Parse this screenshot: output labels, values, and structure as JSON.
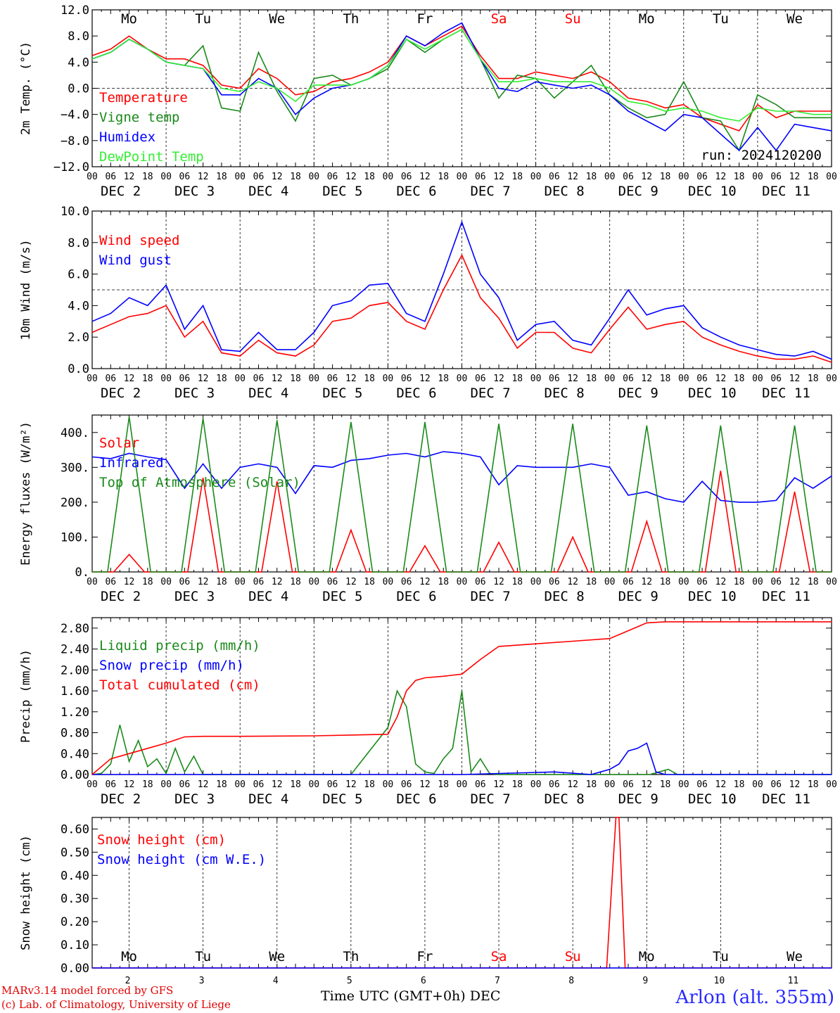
{
  "run_label": "run: 2024120200",
  "x_title": "Time UTC (GMT+0h) DEC",
  "footer": {
    "line1": "MARv3.14 model forced by GFS",
    "line2": "(c) Lab. of Climatology, University of Liege",
    "station": "Arlon (alt. 355m)"
  },
  "colors": {
    "red": "#ff0000",
    "green": "#1a8a1a",
    "blue": "#0000ff",
    "lightgreen": "#33ee33",
    "weekend": "#ff0000"
  },
  "days": {
    "weekday_labels": [
      "Mo",
      "Tu",
      "We",
      "Th",
      "Fr",
      "Sa",
      "Su",
      "Mo",
      "Tu",
      "We"
    ],
    "weekend_flags": [
      false,
      false,
      false,
      false,
      false,
      true,
      true,
      false,
      false,
      false
    ],
    "date_labels": [
      "DEC  2",
      "DEC  3",
      "DEC  4",
      "DEC  5",
      "DEC  6",
      "DEC  7",
      "DEC  8",
      "DEC  9",
      "DEC 10",
      "DEC 11"
    ],
    "day_numbers": [
      "2",
      "3",
      "4",
      "5",
      "6",
      "7",
      "8",
      "9",
      "10",
      "11"
    ],
    "hour_labels": [
      "00",
      "06",
      "12",
      "18"
    ],
    "final_hour_label": "00"
  },
  "chart_data": [
    {
      "type": "line",
      "id": "temp",
      "ylabel": "2m Temp. (°C)",
      "ylim": [
        -12,
        12
      ],
      "yticks": [
        "−12.0",
        "−8.0",
        "−4.0",
        "0.0",
        "4.0",
        "8.0",
        "12.0"
      ],
      "ytick_values": [
        -12,
        -8,
        -4,
        0,
        4,
        8,
        12
      ],
      "hline": 0,
      "x_unit": "hours since DEC 2 00 UTC",
      "series": [
        {
          "name": "Temperature",
          "color": "#ff0000",
          "x": [
            0,
            6,
            12,
            18,
            24,
            30,
            36,
            42,
            48,
            54,
            60,
            66,
            72,
            78,
            84,
            90,
            96,
            102,
            108,
            114,
            120,
            126,
            132,
            138,
            144,
            150,
            156,
            162,
            168,
            174,
            180,
            186,
            192,
            198,
            204,
            210,
            216,
            222,
            228,
            234,
            240
          ],
          "y": [
            5,
            6,
            8,
            6,
            4.5,
            4.5,
            3.5,
            0.5,
            0,
            3,
            1.5,
            -1,
            -0.5,
            1,
            1.5,
            2.5,
            4,
            8,
            6.5,
            8,
            9.5,
            5,
            1.5,
            1.5,
            2.5,
            2,
            1.5,
            2.5,
            1,
            -1.5,
            -2,
            -3,
            -2.5,
            -4.5,
            -5.5,
            -6.5,
            -2.5,
            -4.5,
            -3.5,
            -3.5,
            -3.5
          ]
        },
        {
          "name": "Vigne temp",
          "color": "#1a8a1a",
          "x": [
            0,
            6,
            12,
            18,
            24,
            30,
            36,
            42,
            48,
            54,
            60,
            66,
            72,
            78,
            84,
            90,
            96,
            102,
            108,
            114,
            120,
            126,
            132,
            138,
            144,
            150,
            156,
            162,
            168,
            174,
            180,
            186,
            192,
            198,
            204,
            210,
            216,
            222,
            228,
            234,
            240
          ],
          "y": [
            4.5,
            5.5,
            7.5,
            6,
            4,
            3.5,
            6.5,
            -3,
            -3.5,
            5.5,
            -0.5,
            -5,
            1.5,
            2,
            0.5,
            1.5,
            3,
            7.5,
            5.5,
            7.5,
            9,
            4.5,
            -1.5,
            2,
            1.5,
            -1.5,
            1,
            3.5,
            -1,
            -3,
            -4.5,
            -4,
            1,
            -4.5,
            -5,
            -9.5,
            -1,
            -2.5,
            -4.5,
            -4.5,
            -4.5
          ]
        },
        {
          "name": "Humidex",
          "color": "#0000ff",
          "x": [
            0,
            6,
            12,
            18,
            24,
            30,
            36,
            42,
            48,
            54,
            60,
            66,
            72,
            78,
            84,
            90,
            96,
            102,
            108,
            114,
            120,
            126,
            132,
            138,
            144,
            150,
            156,
            162,
            168,
            174,
            180,
            186,
            192,
            198,
            204,
            210,
            216,
            222,
            228,
            234,
            240
          ],
          "y": [
            4.5,
            5.5,
            7.5,
            6,
            4,
            3.5,
            3,
            -1,
            -1,
            1.5,
            0,
            -4,
            -1.5,
            0,
            0.5,
            1.5,
            3.5,
            8,
            6.5,
            8.5,
            10,
            4.5,
            0,
            -0.5,
            1,
            0.5,
            0,
            0.5,
            -1,
            -3.5,
            -5,
            -6.5,
            -4,
            -4.5,
            -7,
            -9.5,
            -6,
            -9.5,
            -5.5,
            -6,
            -6.5
          ]
        },
        {
          "name": "DewPoint Temp",
          "color": "#33ee33",
          "x": [
            0,
            6,
            12,
            18,
            24,
            30,
            36,
            42,
            48,
            54,
            60,
            66,
            72,
            78,
            84,
            90,
            96,
            102,
            108,
            114,
            120,
            126,
            132,
            138,
            144,
            150,
            156,
            162,
            168,
            174,
            180,
            186,
            192,
            198,
            204,
            210,
            216,
            222,
            228,
            234,
            240
          ],
          "y": [
            4.5,
            5.5,
            7.5,
            6,
            4,
            3.5,
            3,
            0,
            -0.5,
            1,
            0,
            -2,
            0.5,
            0.5,
            0.5,
            1.5,
            3.5,
            7.5,
            6,
            7.5,
            9,
            4.5,
            1,
            1,
            1.5,
            1,
            1,
            1,
            0,
            -2,
            -2.5,
            -3.5,
            -3,
            -3.5,
            -4.5,
            -5,
            -3,
            -3.5,
            -3.5,
            -4,
            -4
          ]
        }
      ],
      "legend": [
        "Temperature",
        "Vigne temp",
        "Humidex",
        "DewPoint Temp"
      ]
    },
    {
      "type": "line",
      "id": "wind",
      "ylabel": "10m Wind (m/s)",
      "ylim": [
        0,
        10
      ],
      "yticks": [
        "0.0",
        "2.0",
        "4.0",
        "6.0",
        "8.0",
        "10.0"
      ],
      "ytick_values": [
        0,
        2,
        4,
        6,
        8,
        10
      ],
      "hline": 5,
      "series": [
        {
          "name": "Wind speed",
          "color": "#ff0000",
          "x": [
            0,
            6,
            12,
            18,
            24,
            30,
            36,
            42,
            48,
            54,
            60,
            66,
            72,
            78,
            84,
            90,
            96,
            102,
            108,
            114,
            120,
            126,
            132,
            138,
            144,
            150,
            156,
            162,
            168,
            174,
            180,
            186,
            192,
            198,
            204,
            210,
            216,
            222,
            228,
            234,
            240
          ],
          "y": [
            2.3,
            2.8,
            3.3,
            3.5,
            4,
            2,
            3,
            1,
            0.8,
            1.8,
            1,
            0.8,
            1.5,
            3,
            3.2,
            4,
            4.2,
            3,
            2.5,
            5,
            7.2,
            4.5,
            3.2,
            1.3,
            2.3,
            2.3,
            1.3,
            1,
            2.5,
            3.9,
            2.5,
            2.8,
            3,
            2,
            1.5,
            1.1,
            0.8,
            0.6,
            0.6,
            0.8,
            0.4
          ]
        },
        {
          "name": "Wind gust",
          "color": "#0000ff",
          "x": [
            0,
            6,
            12,
            18,
            24,
            30,
            36,
            42,
            48,
            54,
            60,
            66,
            72,
            78,
            84,
            90,
            96,
            102,
            108,
            114,
            120,
            126,
            132,
            138,
            144,
            150,
            156,
            162,
            168,
            174,
            180,
            186,
            192,
            198,
            204,
            210,
            216,
            222,
            228,
            234,
            240
          ],
          "y": [
            3,
            3.5,
            4.5,
            4,
            5.3,
            2.5,
            4,
            1.2,
            1.1,
            2.3,
            1.2,
            1.2,
            2.3,
            4,
            4.3,
            5.3,
            5.4,
            3.5,
            3,
            6,
            9.3,
            6,
            4.5,
            1.8,
            2.8,
            3,
            1.8,
            1.5,
            3.2,
            5,
            3.4,
            3.8,
            4,
            2.6,
            2,
            1.5,
            1.2,
            0.9,
            0.8,
            1.1,
            0.6
          ]
        }
      ],
      "legend": [
        "Wind speed",
        "Wind gust"
      ]
    },
    {
      "type": "line",
      "id": "energy",
      "ylabel": "Energy fluxes (W/m²)",
      "ylim": [
        0,
        450
      ],
      "yticks": [
        "0.",
        "100.",
        "200.",
        "300.",
        "400."
      ],
      "ytick_values": [
        0,
        100,
        200,
        300,
        400
      ],
      "series": [
        {
          "name": "Solar",
          "color": "#ff0000",
          "peak_hour_of_day": 12,
          "daily_peaks": [
            50,
            270,
            260,
            120,
            75,
            85,
            100,
            145,
            290,
            230
          ]
        },
        {
          "name": "Infrared",
          "color": "#0000ff",
          "x": [
            0,
            6,
            12,
            18,
            24,
            30,
            36,
            42,
            48,
            54,
            60,
            66,
            72,
            78,
            84,
            90,
            96,
            102,
            108,
            114,
            120,
            126,
            132,
            138,
            144,
            150,
            156,
            162,
            168,
            174,
            180,
            186,
            192,
            198,
            204,
            210,
            216,
            222,
            228,
            234,
            240
          ],
          "y": [
            330,
            325,
            340,
            330,
            322,
            240,
            310,
            240,
            300,
            310,
            300,
            225,
            305,
            300,
            320,
            325,
            335,
            340,
            330,
            345,
            340,
            330,
            250,
            305,
            300,
            300,
            300,
            310,
            300,
            220,
            230,
            210,
            200,
            260,
            205,
            200,
            200,
            205,
            270,
            240,
            275
          ]
        },
        {
          "name": "Top of Atmosphere (Solar)",
          "color": "#1a8a1a",
          "peak_hour_of_day": 12,
          "daily_peaks": [
            445,
            440,
            435,
            430,
            430,
            425,
            425,
            420,
            420,
            420
          ]
        }
      ],
      "legend": [
        "Solar",
        "Infrared",
        "Top of Atmosphere (Solar)"
      ]
    },
    {
      "type": "line",
      "id": "precip",
      "ylabel": "Precip (mm/h)",
      "ylim": [
        0,
        3
      ],
      "yticks": [
        "0.00",
        "0.40",
        "0.80",
        "1.20",
        "1.60",
        "2.00",
        "2.40",
        "2.80"
      ],
      "ytick_values": [
        0,
        0.4,
        0.8,
        1.2,
        1.6,
        2,
        2.4,
        2.8
      ],
      "series": [
        {
          "name": "Liquid precip (mm/h)",
          "color": "#1a8a1a",
          "x": [
            0,
            3,
            6,
            9,
            12,
            15,
            18,
            21,
            24,
            27,
            30,
            33,
            36,
            48,
            60,
            72,
            84,
            96,
            99,
            102,
            105,
            108,
            111,
            114,
            117,
            120,
            123,
            126,
            129,
            132,
            135,
            138,
            144,
            156,
            168,
            174,
            178,
            181,
            184,
            187,
            190,
            192,
            240
          ],
          "y": [
            0,
            0.02,
            0.2,
            0.95,
            0.25,
            0.65,
            0.15,
            0.3,
            0.02,
            0.5,
            0.05,
            0.35,
            0,
            0,
            0,
            0,
            0,
            0.9,
            1.6,
            1.3,
            0.2,
            0.05,
            0.02,
            0.3,
            0.5,
            1.6,
            0.05,
            0.3,
            0.02,
            0,
            0,
            0,
            0,
            0,
            0,
            0,
            0,
            0,
            0.05,
            0.1,
            0,
            0,
            0
          ]
        },
        {
          "name": "Snow precip (mm/h)",
          "color": "#0000ff",
          "x": [
            0,
            120,
            150,
            162,
            165,
            168,
            171,
            174,
            177,
            180,
            183,
            186,
            240
          ],
          "y": [
            0,
            0,
            0.05,
            0,
            0.05,
            0.1,
            0.2,
            0.45,
            0.5,
            0.6,
            0.05,
            0,
            0
          ]
        },
        {
          "name": "Total cumulated (cm)",
          "color": "#ff0000",
          "x": [
            0,
            6,
            12,
            18,
            24,
            30,
            36,
            48,
            72,
            96,
            99,
            102,
            105,
            108,
            114,
            120,
            126,
            132,
            144,
            156,
            168,
            174,
            180,
            186,
            240
          ],
          "y": [
            0,
            0.3,
            0.4,
            0.5,
            0.6,
            0.72,
            0.73,
            0.73,
            0.74,
            0.77,
            1.1,
            1.6,
            1.8,
            1.85,
            1.88,
            1.92,
            2.2,
            2.45,
            2.5,
            2.55,
            2.6,
            2.75,
            2.9,
            2.92,
            2.92
          ]
        }
      ],
      "legend": [
        "Liquid precip (mm/h)",
        "Snow precip (mm/h)",
        "Total cumulated (cm)"
      ]
    },
    {
      "type": "line",
      "id": "snow",
      "ylabel": "Snow height (cm)",
      "ylim": [
        0,
        0.65
      ],
      "yticks": [
        "0.00",
        "0.10",
        "0.20",
        "0.30",
        "0.40",
        "0.50",
        "0.60"
      ],
      "ytick_values": [
        0,
        0.1,
        0.2,
        0.3,
        0.4,
        0.5,
        0.6
      ],
      "series": [
        {
          "name": "Snow height (cm)",
          "color": "#ff0000",
          "x": [
            0,
            167,
            170,
            171,
            173,
            240
          ],
          "y": [
            0,
            0,
            0.65,
            0.65,
            0,
            0
          ]
        },
        {
          "name": "Snow height (cm W.E.)",
          "color": "#0000ff",
          "x": [
            0,
            240
          ],
          "y": [
            0,
            0
          ]
        }
      ],
      "legend": [
        "Snow height (cm)",
        "Snow height (cm W.E.)"
      ]
    }
  ]
}
